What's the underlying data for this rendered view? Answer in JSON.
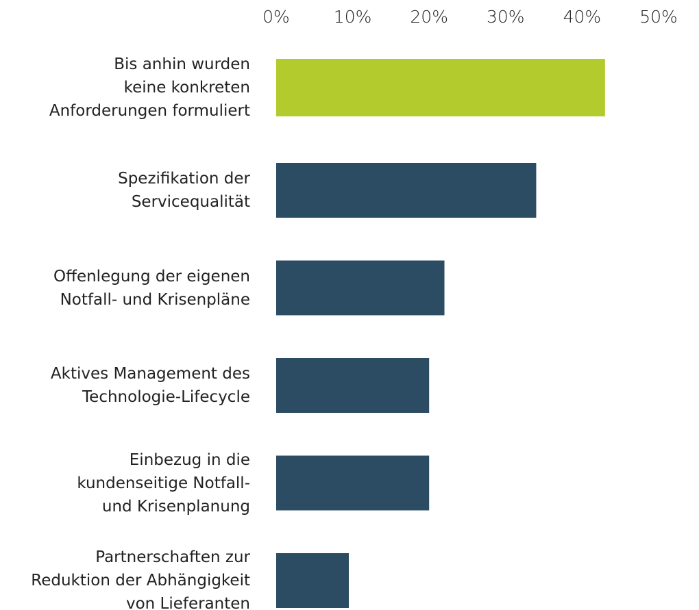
{
  "chart_data": {
    "type": "bar",
    "orientation": "horizontal",
    "categories": [
      "Bis anhin wurden\nkeine konkreten\nAnforderungen formuliert",
      "Spezifikation der\nServicequalität",
      "Offenlegung der eigenen\nNotfall- und Krisenpläne",
      "Aktives Management des\nTechnologie-Lifecycle",
      "Einbezug in die\nkundenseitige Notfall-\nund Krisenplanung",
      "Partnerschaften zur\nReduktion der Abhängigkeit\nvon Lieferanten"
    ],
    "values": [
      43,
      34,
      22,
      20,
      20,
      9.5
    ],
    "colors": [
      "#b4cb2d",
      "#2b4c63",
      "#2b4c63",
      "#2b4c63",
      "#2b4c63",
      "#2b4c63"
    ],
    "xlim": [
      0,
      50
    ],
    "xticks": [
      {
        "value": 0,
        "label": "0%"
      },
      {
        "value": 10,
        "label": "10%"
      },
      {
        "value": 20,
        "label": "20%"
      },
      {
        "value": 30,
        "label": "30%"
      },
      {
        "value": 40,
        "label": "40%"
      },
      {
        "value": 50,
        "label": "50%"
      }
    ]
  }
}
